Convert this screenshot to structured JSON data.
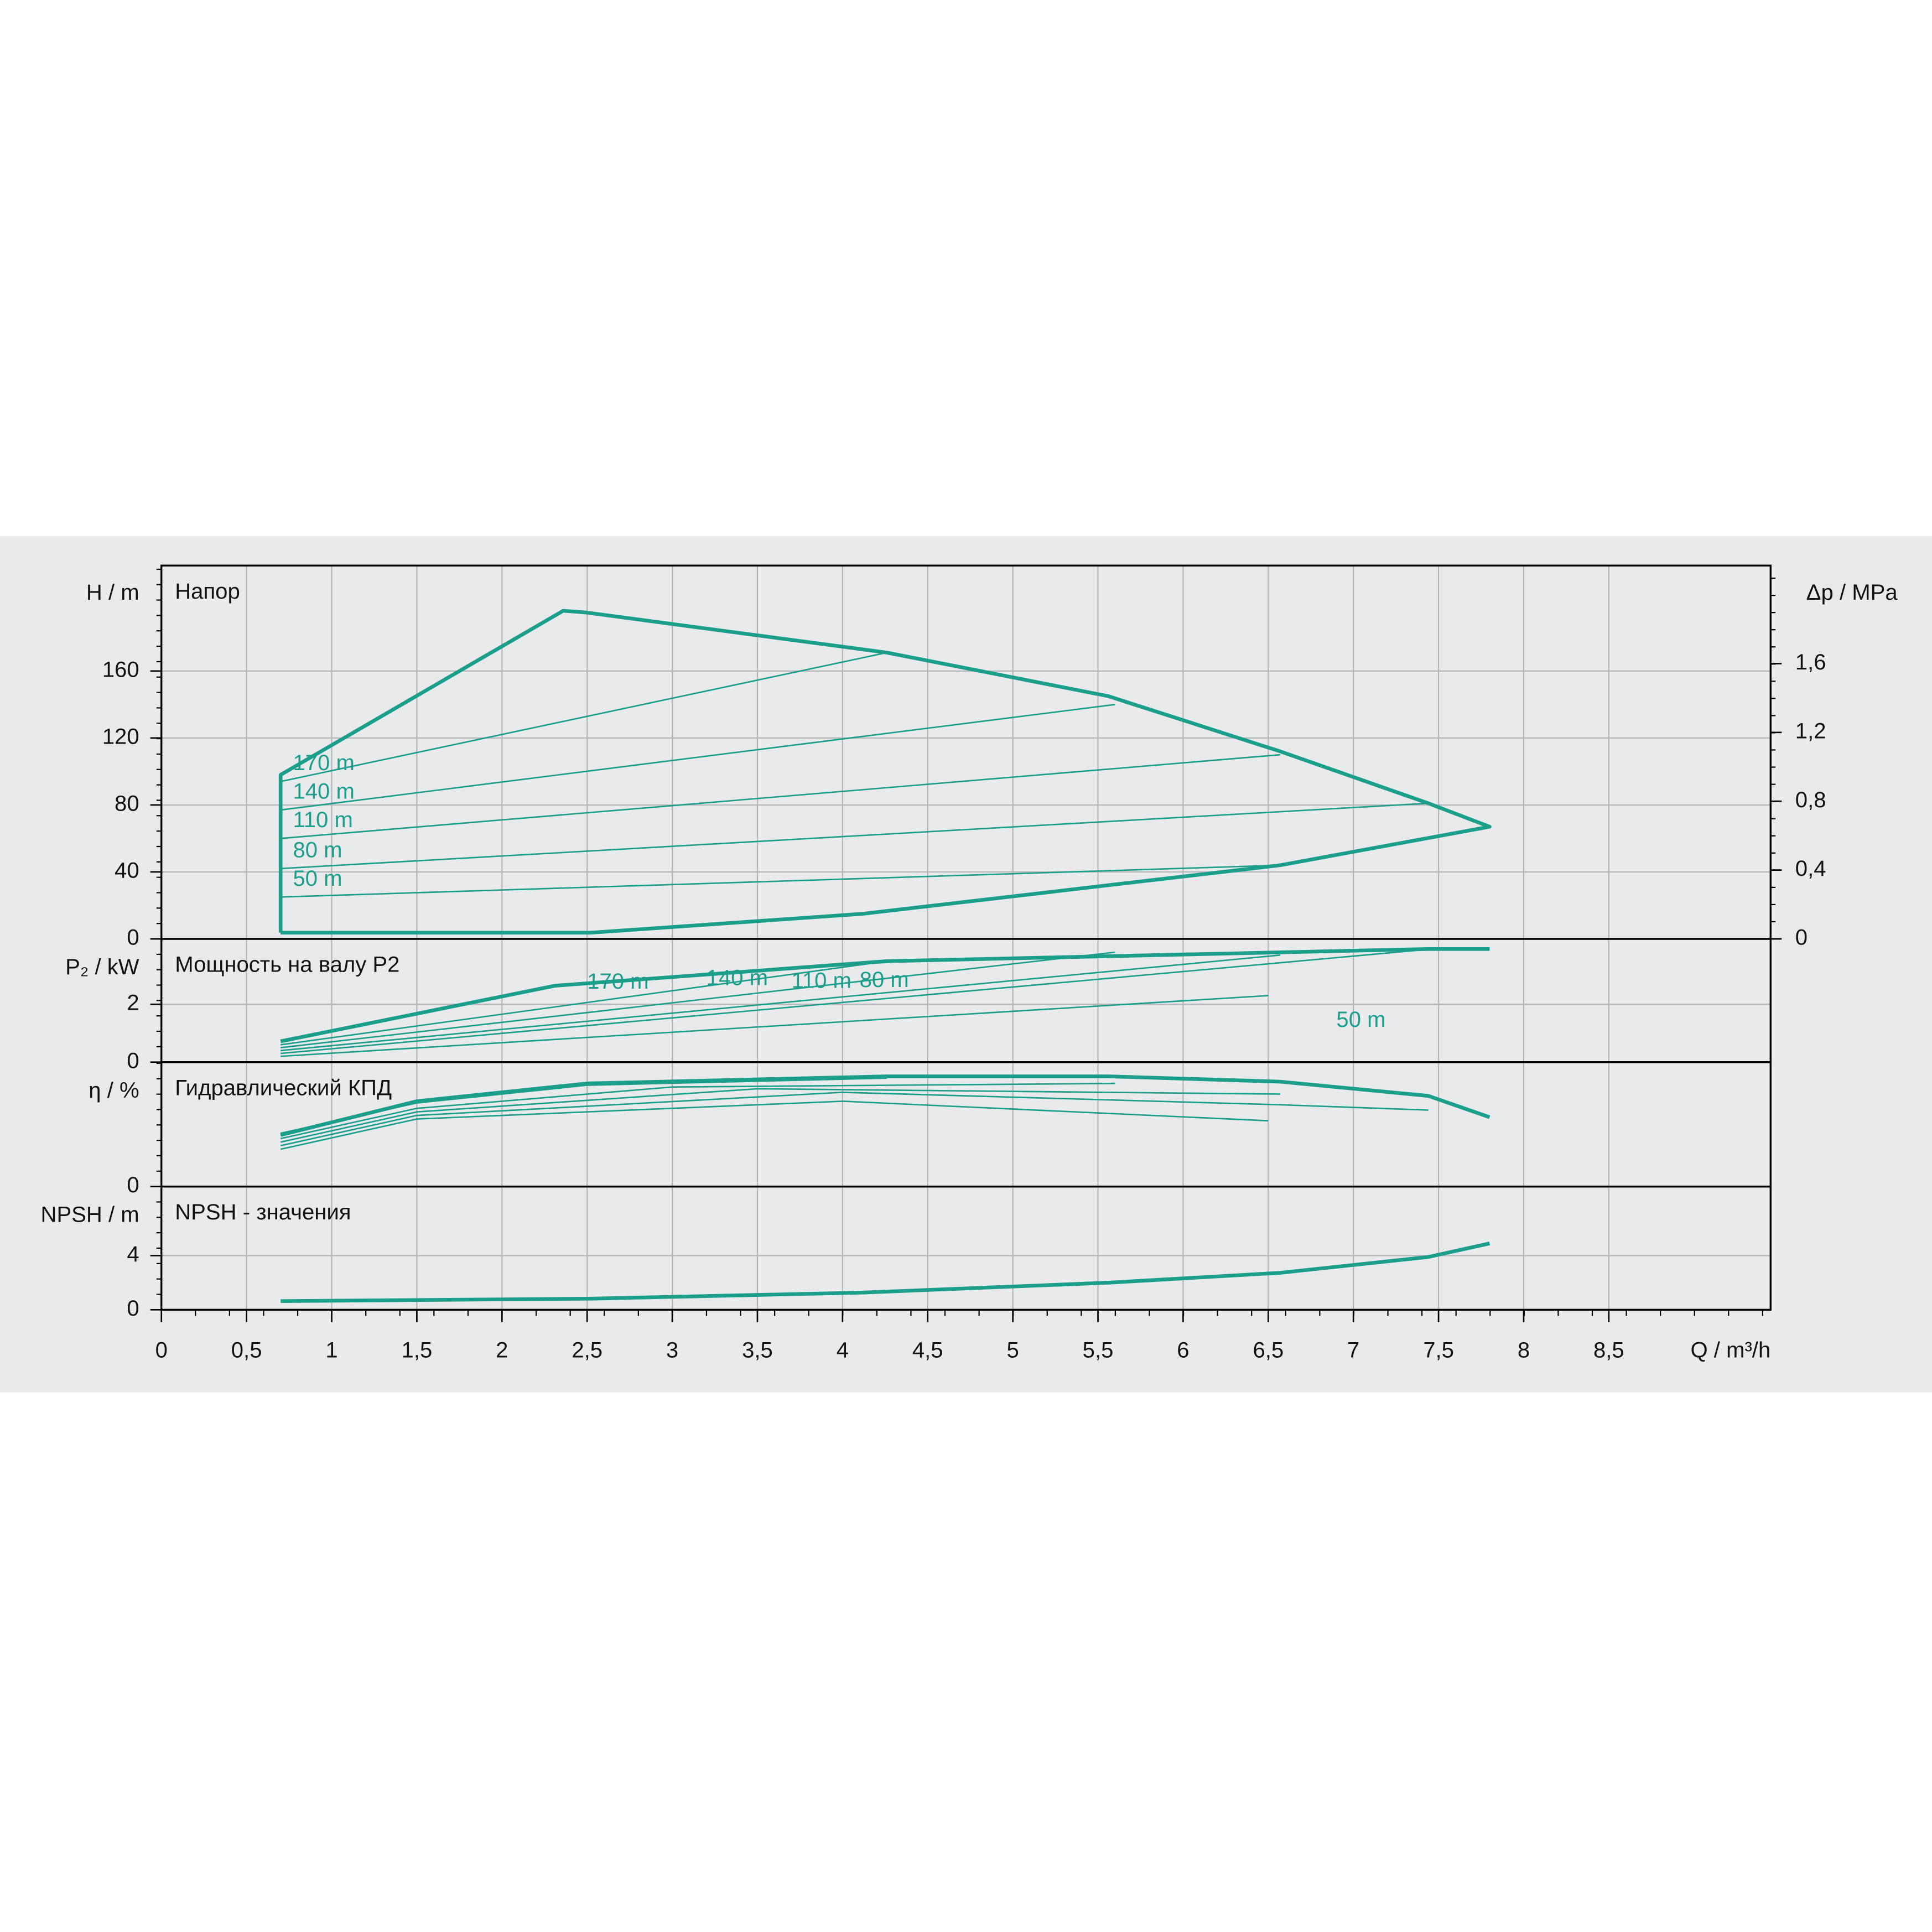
{
  "chart_data": [
    {
      "type": "line",
      "title": "Напор",
      "ylabel": "H / m",
      "y2label": "Δp / MPa",
      "color": "#1b9e8a",
      "xlim": [
        0,
        9.45
      ],
      "ylim": [
        0,
        223
      ],
      "yticks": [
        0,
        40,
        80,
        120,
        160
      ],
      "grid": true,
      "y2lim": [
        0,
        2.17
      ],
      "y2ticks": [
        0,
        {
          "value": 0.4,
          "label": "0,4"
        },
        {
          "value": 0.8,
          "label": "0,8"
        },
        {
          "value": 1.2,
          "label": "1,2"
        },
        {
          "value": 1.6,
          "label": "1,6"
        }
      ],
      "series": [
        {
          "color": "#1b9e8a",
          "line_width": 3,
          "x": [
            0.7,
            0.7,
            2.36,
            2.49,
            4.26,
            5.56,
            6.57,
            7.44,
            7.8,
            6.57,
            4.12,
            2.52,
            0.7
          ],
          "values": [
            3.7,
            98,
            196,
            195,
            171,
            145,
            112,
            81,
            67,
            44,
            15,
            3.7,
            3.7
          ]
        },
        {
          "name": "170 m",
          "color": "#1b9e8a",
          "line_width": 1.2,
          "x": [
            0.7,
            4.26
          ],
          "values": [
            94,
            171
          ]
        },
        {
          "name": "140 m",
          "color": "#1b9e8a",
          "line_width": 1.2,
          "x": [
            0.7,
            5.6
          ],
          "values": [
            77,
            140
          ]
        },
        {
          "name": "110 m",
          "color": "#1b9e8a",
          "line_width": 1.2,
          "x": [
            0.7,
            6.57
          ],
          "values": [
            60,
            110
          ]
        },
        {
          "name": "80 m",
          "color": "#1b9e8a",
          "line_width": 1.2,
          "x": [
            0.7,
            7.44
          ],
          "values": [
            42,
            81
          ]
        },
        {
          "name": "50 m",
          "color": "#1b9e8a",
          "line_width": 1.2,
          "x": [
            0.7,
            6.57
          ],
          "values": [
            25,
            44
          ]
        }
      ]
    },
    {
      "type": "line",
      "title": "Мощность на валу P2",
      "ylabel": "P₂ / kW",
      "xlim": [
        0,
        9.45
      ],
      "ylim": [
        0,
        4.26
      ],
      "yticks": [
        0,
        2
      ],
      "grid": true,
      "series": [
        {
          "color": "#1b9e8a",
          "line_width": 3,
          "x": [
            0.7,
            2.31,
            4.26,
            7.44,
            7.8
          ],
          "values": [
            0.72,
            2.64,
            3.49,
            3.91,
            3.91
          ]
        },
        {
          "name": "170 m",
          "color": "#1b9e8a",
          "line_width": 1.2,
          "x": [
            0.7,
            4.26
          ],
          "values": [
            0.6,
            3.49
          ]
        },
        {
          "name": "140 m",
          "color": "#1b9e8a",
          "line_width": 1.2,
          "x": [
            0.7,
            5.6
          ],
          "values": [
            0.5,
            3.8
          ]
        },
        {
          "name": "110 m",
          "color": "#1b9e8a",
          "line_width": 1.2,
          "x": [
            0.7,
            6.57
          ],
          "values": [
            0.4,
            3.7
          ]
        },
        {
          "name": "80 m",
          "color": "#1b9e8a",
          "line_width": 1.2,
          "x": [
            0.7,
            7.44
          ],
          "values": [
            0.3,
            3.9
          ]
        },
        {
          "name": "50 m",
          "color": "#1b9e8a",
          "line_width": 1.2,
          "x": [
            0.7,
            6.5
          ],
          "values": [
            0.2,
            2.3
          ]
        }
      ]
    },
    {
      "type": "line",
      "title": "Гидравлический КПД",
      "ylabel": "η / %",
      "xlim": [
        0,
        9.45
      ],
      "ylim": [
        0,
        70
      ],
      "yticks": [
        0
      ],
      "grid": true,
      "series": [
        {
          "color": "#1b9e8a",
          "line_width": 3,
          "x": [
            0.7,
            1.5,
            2.5,
            4.26,
            5.56,
            6.57,
            7.44,
            7.8
          ],
          "values": [
            29,
            48,
            58,
            62,
            62,
            59,
            51,
            39
          ]
        },
        {
          "color": "#1b9e8a",
          "line_width": 1.2,
          "x": [
            0.7,
            1.5,
            2.5,
            4.26
          ],
          "values": [
            30,
            47,
            57,
            61
          ]
        },
        {
          "color": "#1b9e8a",
          "line_width": 1.2,
          "x": [
            0.7,
            1.5,
            3,
            5.6
          ],
          "values": [
            27,
            44,
            56,
            58
          ]
        },
        {
          "color": "#1b9e8a",
          "line_width": 1.2,
          "x": [
            0.7,
            1.5,
            3.5,
            6.57
          ],
          "values": [
            25,
            42,
            55,
            52
          ]
        },
        {
          "color": "#1b9e8a",
          "line_width": 1.2,
          "x": [
            0.7,
            1.5,
            4,
            6.57,
            7.44
          ],
          "values": [
            23,
            40,
            53,
            46,
            43
          ]
        },
        {
          "color": "#1b9e8a",
          "line_width": 1.2,
          "x": [
            0.7,
            1.5,
            4,
            6.5
          ],
          "values": [
            21,
            38,
            48,
            37
          ]
        }
      ]
    },
    {
      "type": "line",
      "title": "NPSH - значения",
      "ylabel": "NPSH / m",
      "xlabel": "Q / m³/h",
      "xlim": [
        0,
        9.45
      ],
      "ylim": [
        0,
        9.1
      ],
      "yticks": [
        0,
        4
      ],
      "grid": true,
      "xticks": [
        0,
        {
          "value": 0.5,
          "label": "0,5"
        },
        1,
        {
          "value": 1.5,
          "label": "1,5"
        },
        2,
        {
          "value": 2.5,
          "label": "2,5"
        },
        3,
        {
          "value": 3.5,
          "label": "3,5"
        },
        4,
        {
          "value": 4.5,
          "label": "4,5"
        },
        5,
        {
          "value": 5.5,
          "label": "5,5"
        },
        6,
        {
          "value": 6.5,
          "label": "6,5"
        },
        7,
        {
          "value": 7.5,
          "label": "7,5"
        },
        8,
        {
          "value": 8.5,
          "label": "8,5"
        }
      ],
      "series": [
        {
          "color": "#1b9e8a",
          "line_width": 3,
          "x": [
            0.7,
            2.52,
            4.12,
            5.56,
            6.57,
            7.44,
            7.8
          ],
          "values": [
            0.64,
            0.82,
            1.27,
            2.0,
            2.73,
            3.9,
            4.9
          ]
        }
      ]
    }
  ]
}
